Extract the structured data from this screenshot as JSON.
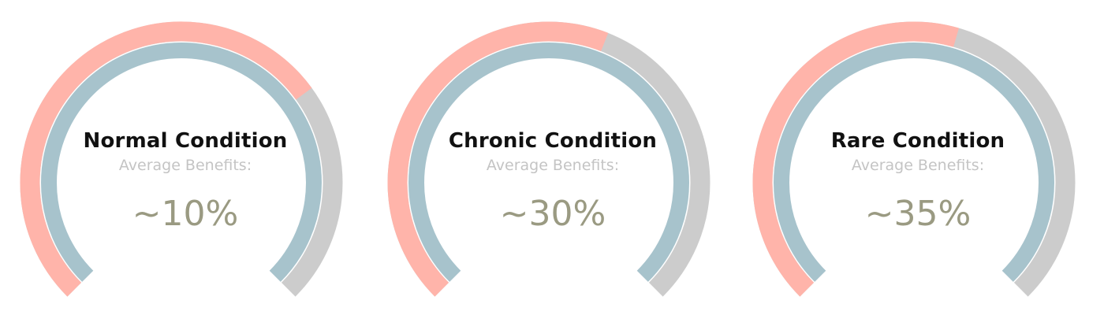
{
  "colors": {
    "outer_fill": "#ffb4aa",
    "outer_track": "#cccccc",
    "inner_ring": "#a7c3cc",
    "title": "#111111",
    "subtitle": "#c4c4c4",
    "value": "#9a9a82"
  },
  "chart_data": [
    {
      "type": "gauge",
      "title": "Normal Condition",
      "subtitle": "Average Benefits:",
      "value_label": "~10%",
      "value": 10,
      "outer_fill_fraction": 0.7
    },
    {
      "type": "gauge",
      "title": "Chronic Condition",
      "subtitle": "Average Benefits:",
      "value_label": "~30%",
      "value": 30,
      "outer_fill_fraction": 0.58
    },
    {
      "type": "gauge",
      "title": "Rare Condition",
      "subtitle": "Average Benefits:",
      "value_label": "~35%",
      "value": 35,
      "outer_fill_fraction": 0.56
    }
  ]
}
